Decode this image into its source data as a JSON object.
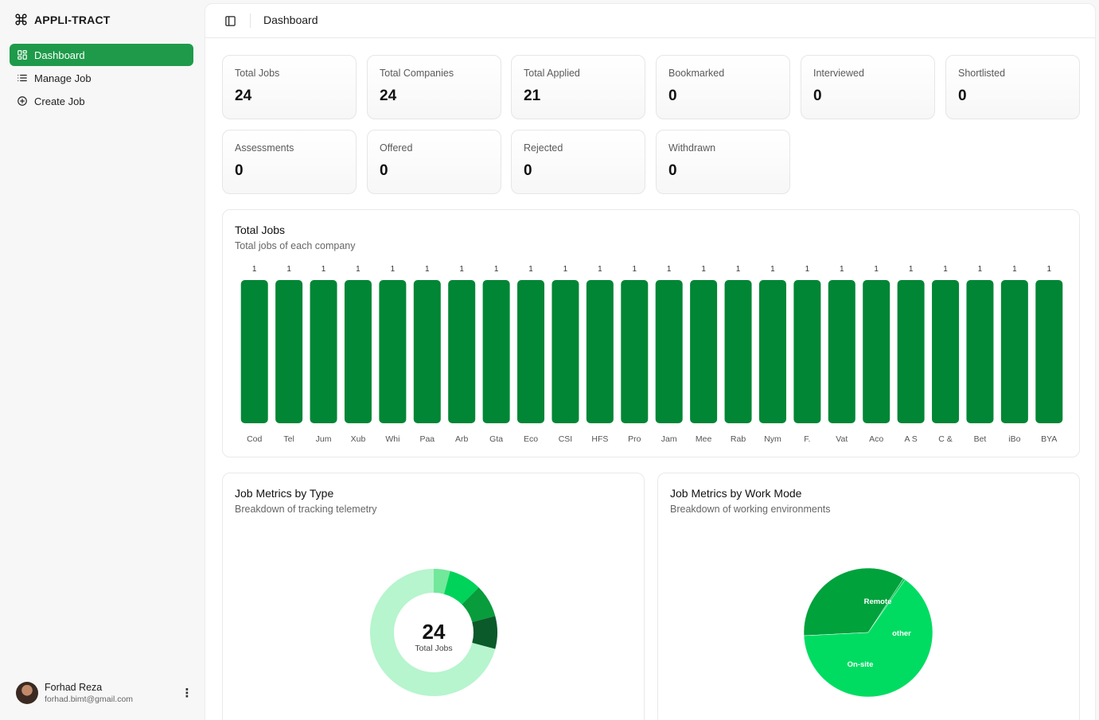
{
  "brand": {
    "name": "APPLI-TRACT",
    "icon": "command-icon"
  },
  "nav": [
    {
      "label": "Dashboard",
      "icon": "grid-icon",
      "active": true
    },
    {
      "label": "Manage Job",
      "icon": "list-icon",
      "active": false
    },
    {
      "label": "Create Job",
      "icon": "plus-circle-icon",
      "active": false
    }
  ],
  "user": {
    "name": "Forhad Reza",
    "email": "forhad.bimt@gmail.com"
  },
  "header": {
    "breadcrumb": "Dashboard"
  },
  "stats": [
    {
      "label": "Total Jobs",
      "value": "24"
    },
    {
      "label": "Total Companies",
      "value": "24"
    },
    {
      "label": "Total Applied",
      "value": "21"
    },
    {
      "label": "Bookmarked",
      "value": "0"
    },
    {
      "label": "Interviewed",
      "value": "0"
    },
    {
      "label": "Shortlisted",
      "value": "0"
    },
    {
      "label": "Assessments",
      "value": "0"
    },
    {
      "label": "Offered",
      "value": "0"
    },
    {
      "label": "Rejected",
      "value": "0"
    },
    {
      "label": "Withdrawn",
      "value": "0"
    }
  ],
  "chart_data": [
    {
      "type": "bar",
      "title": "Total Jobs",
      "subtitle": "Total jobs of each company",
      "categories": [
        "Cod",
        "Tel",
        "Jum",
        "Xub",
        "Whi",
        "Paa",
        "Arb",
        "Gta",
        "Eco",
        "CSI",
        "HFS",
        "Pro",
        "Jam",
        "Mee",
        "Rab",
        "Nym",
        "F.",
        "Vat",
        "Aco",
        "A S",
        "C &",
        "Bet",
        "iBo",
        "BYA"
      ],
      "values": [
        1,
        1,
        1,
        1,
        1,
        1,
        1,
        1,
        1,
        1,
        1,
        1,
        1,
        1,
        1,
        1,
        1,
        1,
        1,
        1,
        1,
        1,
        1,
        1
      ],
      "ylim": [
        0,
        1
      ],
      "color": "#008635"
    },
    {
      "type": "pie",
      "variant": "donut",
      "title": "Job Metrics by Type",
      "subtitle": "Breakdown of tracking telemetry",
      "center_value": "24",
      "center_label": "Total Jobs",
      "slices": [
        {
          "value": 15,
          "color": "#b6f5cd"
        },
        {
          "value": 1,
          "color": "#72e89b"
        },
        {
          "value": 2,
          "color": "#00d35a"
        },
        {
          "value": 2,
          "color": "#089c3d"
        },
        {
          "value": 2,
          "color": "#0b5a2a"
        },
        {
          "value": 2,
          "color": "#b6f5cd"
        }
      ]
    },
    {
      "type": "pie",
      "title": "Job Metrics by Work Mode",
      "subtitle": "Breakdown of working environments",
      "slices": [
        {
          "label": "Remote",
          "value": 35,
          "color": "#00a23c"
        },
        {
          "label": "other",
          "value": 0.5,
          "color": "#00c450"
        },
        {
          "label": "On-site",
          "value": 64.5,
          "color": "#00dc62"
        }
      ]
    }
  ]
}
